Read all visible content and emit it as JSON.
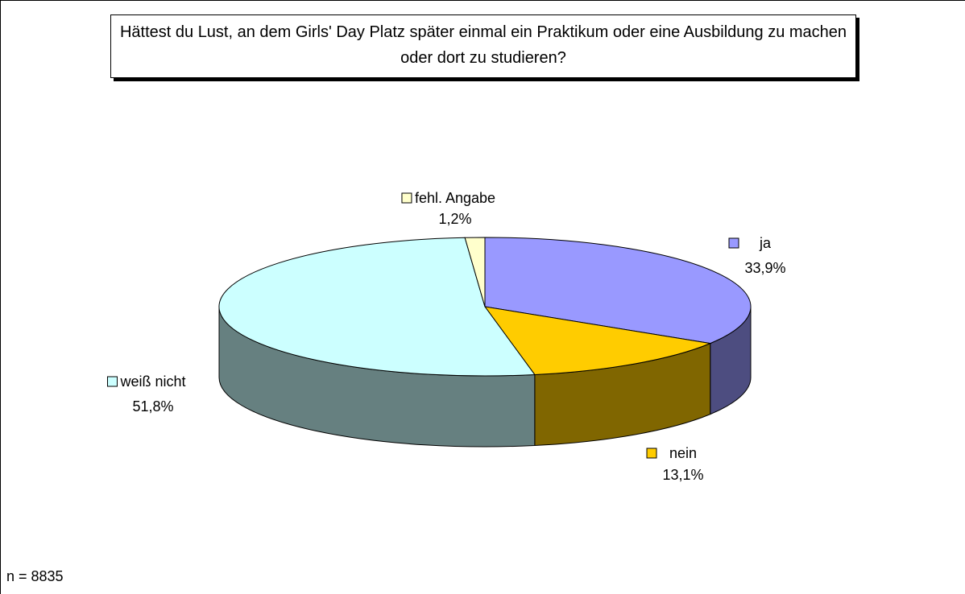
{
  "chart_data": {
    "type": "pie3d",
    "title": "Hättest du Lust, an dem Girls' Day Platz später einmal ein Praktikum oder eine Ausbildung zu machen oder dort zu studieren?",
    "categories": [
      "ja",
      "nein",
      "weiß nicht",
      "fehl. Angabe"
    ],
    "values": [
      33.9,
      13.1,
      51.8,
      1.2
    ],
    "value_labels": [
      "33,9%",
      "13,1%",
      "51,8%",
      "1,2%"
    ],
    "colors": [
      "#9999ff",
      "#ffcc00",
      "#ccffff",
      "#ffffcc"
    ],
    "annotation": "n = 8835"
  }
}
